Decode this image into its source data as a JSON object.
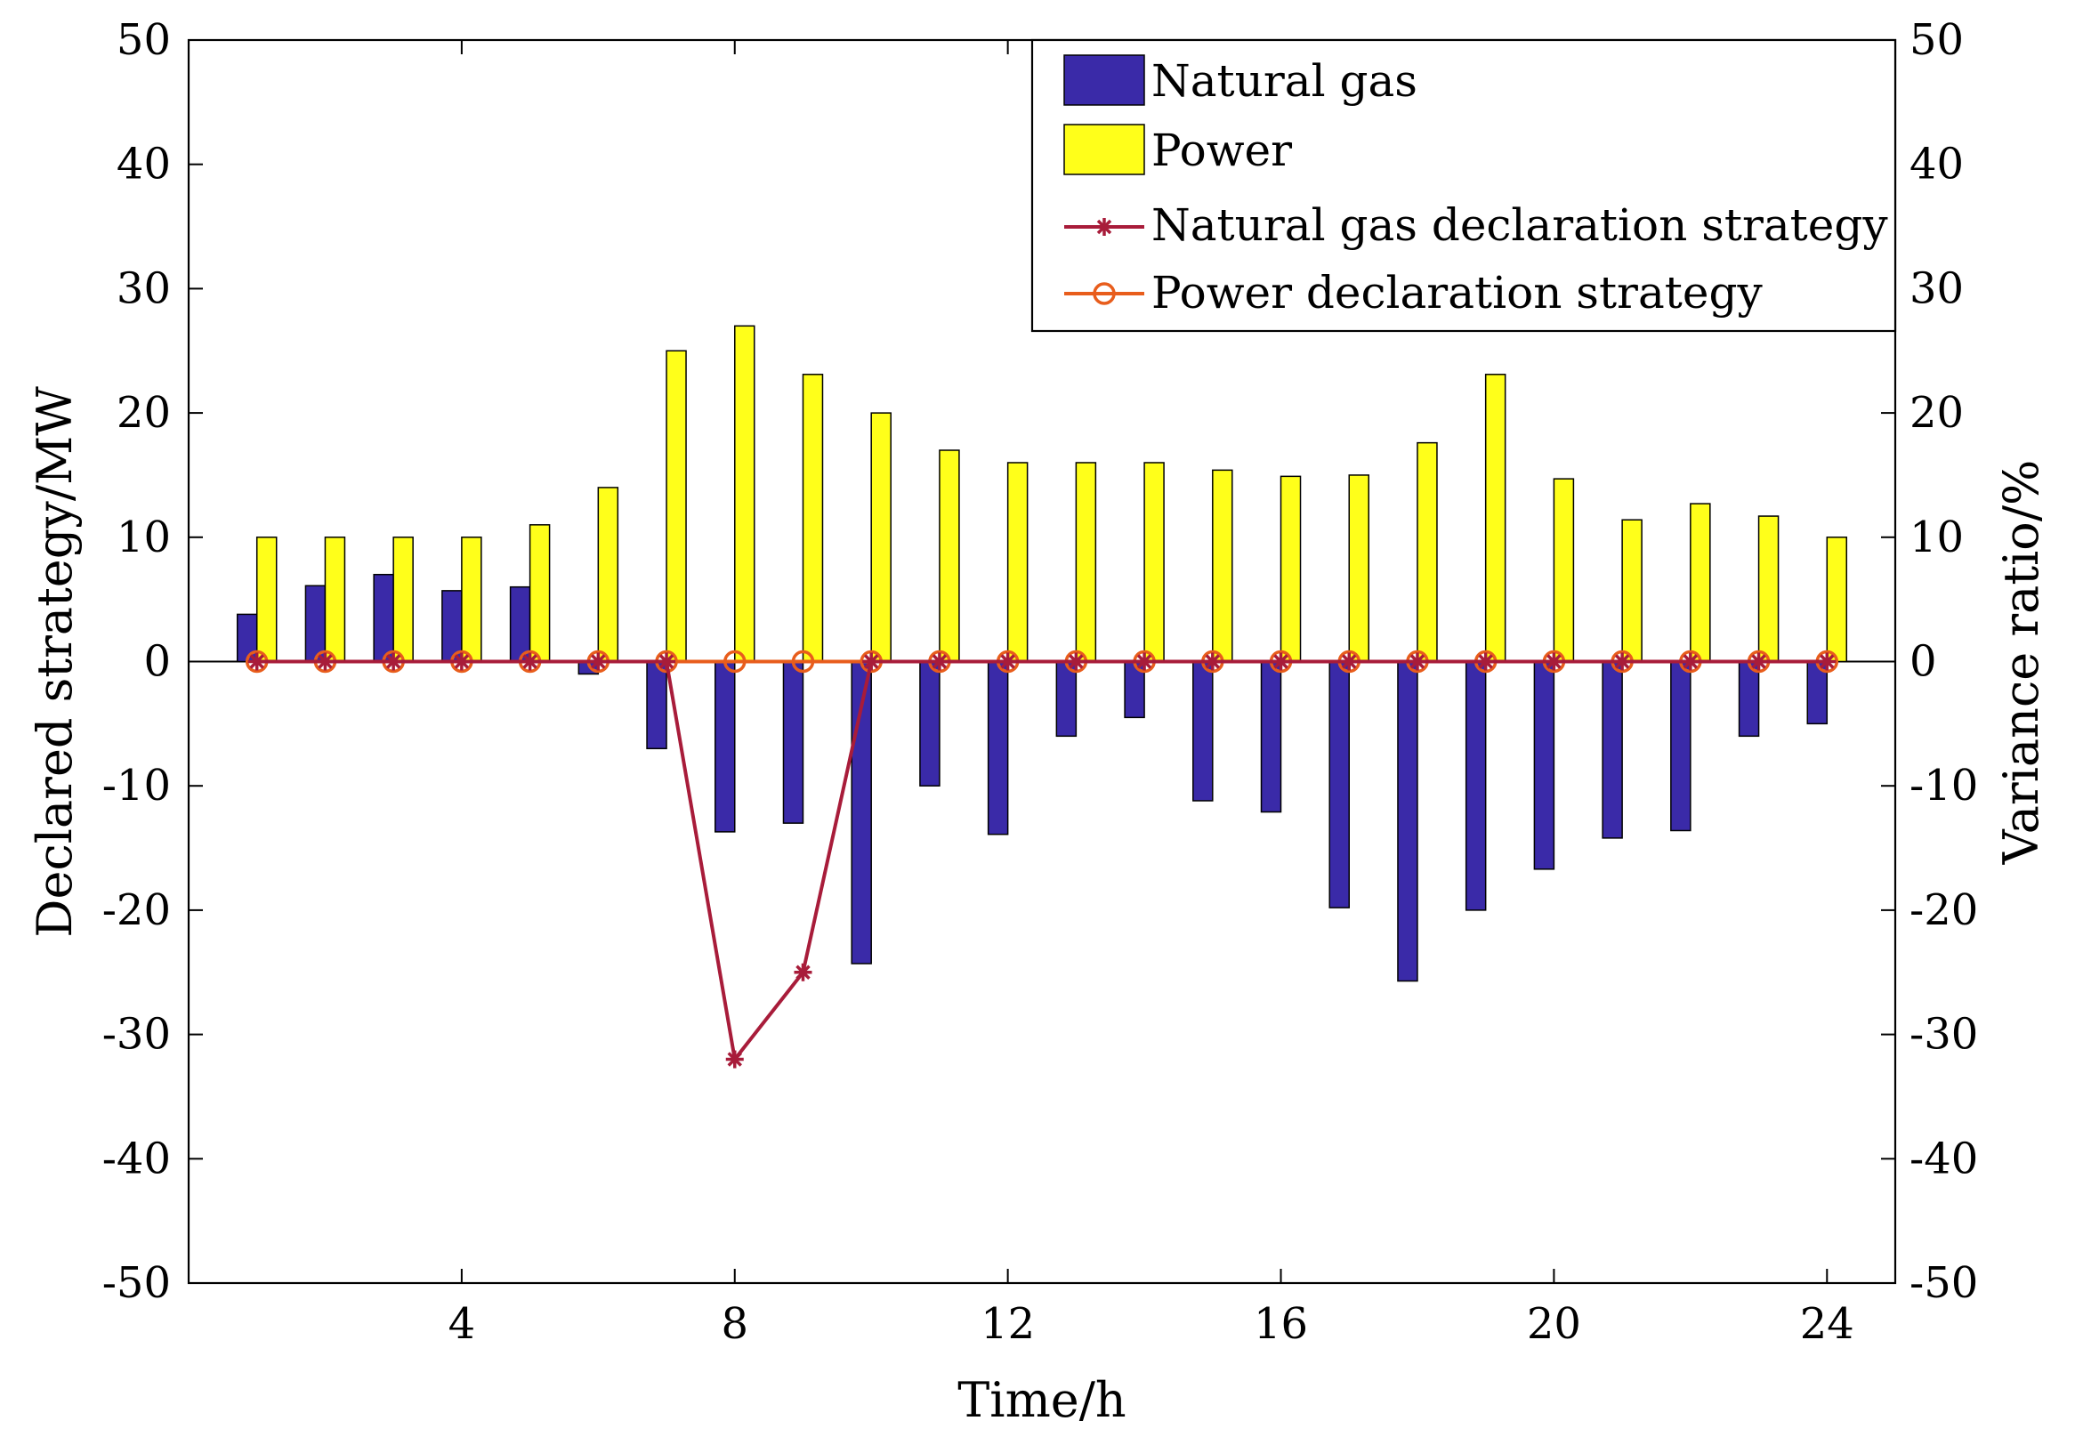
{
  "chart_data": {
    "type": "bar",
    "title": "",
    "xlabel": "Time/h",
    "ylabel_left": "Declared strategy/MW",
    "ylabel_right": "Variance ratio/%",
    "xlim": [
      0,
      25
    ],
    "ylim_left": [
      -50,
      50
    ],
    "ylim_right": [
      -50,
      50
    ],
    "x_ticks": [
      "4",
      "8",
      "12",
      "16",
      "20",
      "24"
    ],
    "y_ticks_left": [
      "50",
      "40",
      "30",
      "20",
      "10",
      "0",
      "-10",
      "-20",
      "-30",
      "-40",
      "-50"
    ],
    "y_ticks_right": [
      "50",
      "40",
      "30",
      "20",
      "10",
      "0",
      "-10",
      "-20",
      "-30",
      "-40",
      "-50"
    ],
    "grid": false,
    "legend_position": "top-right",
    "x": [
      1,
      2,
      3,
      4,
      5,
      6,
      7,
      8,
      9,
      10,
      11,
      12,
      13,
      14,
      15,
      16,
      17,
      18,
      19,
      20,
      21,
      22,
      23,
      24
    ],
    "series": [
      {
        "name": "Natural gas",
        "kind": "bar",
        "axis": "left",
        "color": "#3a2aa8",
        "values": [
          3.8,
          6.1,
          7.0,
          5.7,
          6.0,
          -1.0,
          -7.0,
          -13.7,
          -13.0,
          -24.3,
          -10.0,
          -13.9,
          -6.0,
          -4.5,
          -11.2,
          -12.1,
          -19.8,
          -25.7,
          -20.0,
          -16.7,
          -14.2,
          -13.6,
          -6.0,
          -5.0
        ]
      },
      {
        "name": "Power",
        "kind": "bar",
        "axis": "left",
        "color": "#ffff1a",
        "values": [
          10.0,
          10.0,
          10.0,
          10.0,
          11.0,
          14.0,
          25.0,
          27.0,
          23.1,
          20.0,
          17.0,
          16.0,
          16.0,
          16.0,
          15.4,
          14.9,
          15.0,
          17.6,
          23.1,
          14.7,
          11.4,
          12.7,
          11.7,
          10.0
        ]
      },
      {
        "name": "Natural gas declaration strategy",
        "kind": "line",
        "marker": "asterisk",
        "axis": "right",
        "color": "#a81c3a",
        "values": [
          0,
          0,
          0,
          0,
          0,
          0,
          0,
          -32,
          -25,
          0,
          0,
          0,
          0,
          0,
          0,
          0,
          0,
          0,
          0,
          0,
          0,
          0,
          0,
          0
        ]
      },
      {
        "name": "Power declaration strategy",
        "kind": "line",
        "marker": "circle",
        "axis": "right",
        "color": "#e85d1c",
        "values": [
          0,
          0,
          0,
          0,
          0,
          0,
          0,
          0,
          0,
          0,
          0,
          0,
          0,
          0,
          0,
          0,
          0,
          0,
          0,
          0,
          0,
          0,
          0,
          0
        ]
      }
    ]
  }
}
